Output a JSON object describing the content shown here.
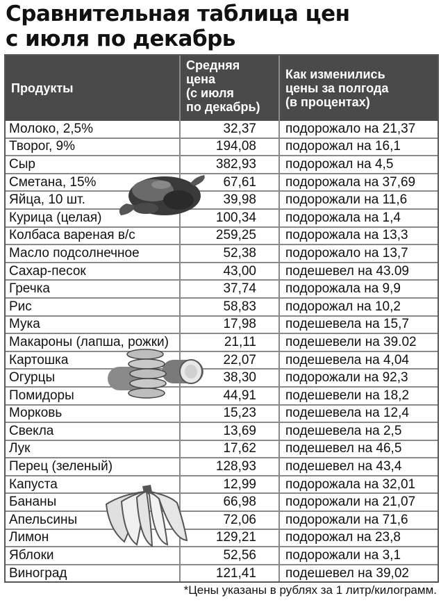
{
  "title_line1": "Сравнительная таблица цен",
  "title_line2": "с июля по декабрь",
  "headers": {
    "product": "Продукты",
    "price_l1": "Средняя",
    "price_l2": "цена",
    "price_l3": "(с июля",
    "price_l4": "по декабрь)",
    "change_l1": "Как изменились",
    "change_l2": "цены за полгода",
    "change_l3": "(в процентах)"
  },
  "rows": [
    {
      "product": "Молоко, 2,5%",
      "price": "32,37",
      "change": "подорожало на 21,37"
    },
    {
      "product": "Творог, 9%",
      "price": "194,08",
      "change": "подорожал на 16,1"
    },
    {
      "product": "Сыр",
      "price": "382,93",
      "change": "подорожал на 4,5"
    },
    {
      "product": "Сметана, 15%",
      "price": "67,61",
      "change": "подорожала на 37,69"
    },
    {
      "product": "Яйца, 10 шт.",
      "price": "39,98",
      "change": "подорожали на 11,6"
    },
    {
      "product": "Курица (целая)",
      "price": "100,34",
      "change": "подорожала на 1,4"
    },
    {
      "product": "Колбаса вареная в/с",
      "price": "259,25",
      "change": "подорожала на 13,3"
    },
    {
      "product": "Масло подсолнечное",
      "price": "52,38",
      "change": "подорожало на 13,7"
    },
    {
      "product": "Сахар-песок",
      "price": "43,00",
      "change": "подешевел на 43.09"
    },
    {
      "product": "Гречка",
      "price": "37,74",
      "change": "подорожала на 9,9"
    },
    {
      "product": "Рис",
      "price": "58,83",
      "change": "подорожал на 10,2"
    },
    {
      "product": "Мука",
      "price": "17,98",
      "change": "подешевела на 15,7"
    },
    {
      "product": "Макароны (лапша, рожки)",
      "price": "21,11",
      "change": "подешевели на 39.02"
    },
    {
      "product": "Картошка",
      "price": "22,07",
      "change": "подешевела на 4,04"
    },
    {
      "product": "Огурцы",
      "price": "38,30",
      "change": "подорожали на 92,3"
    },
    {
      "product": "Помидоры",
      "price": "44,91",
      "change": "подешевели на 18,2"
    },
    {
      "product": "Морковь",
      "price": "15,23",
      "change": "подешевела на 12,4"
    },
    {
      "product": "Свекла",
      "price": "13,69",
      "change": "подешевела на 2,5"
    },
    {
      "product": "Лук",
      "price": "17,62",
      "change": "подешевел на 46,5"
    },
    {
      "product": "Перец (зеленый)",
      "price": "128,93",
      "change": "подешевел на 43,4"
    },
    {
      "product": "Капуста",
      "price": "12,99",
      "change": "подорожала на 32,01"
    },
    {
      "product": "Бананы",
      "price": "66,98",
      "change": "подорожали на 21,07"
    },
    {
      "product": "Апельсины",
      "price": "72,06",
      "change": "подорожали на 71,6"
    },
    {
      "product": "Лимон",
      "price": "129,21",
      "change": "подорожал на 23,8"
    },
    {
      "product": "Яблоки",
      "price": "52,56",
      "change": "подорожали на 3,1"
    },
    {
      "product": "Виноград",
      "price": "121,41",
      "change": "подешевел на 39,02"
    }
  ],
  "footnote": "*Цены указаны в рублях за 1 литр/килограмм.",
  "illustrations": [
    "chicken-image",
    "cucumber-image",
    "banana-image"
  ]
}
